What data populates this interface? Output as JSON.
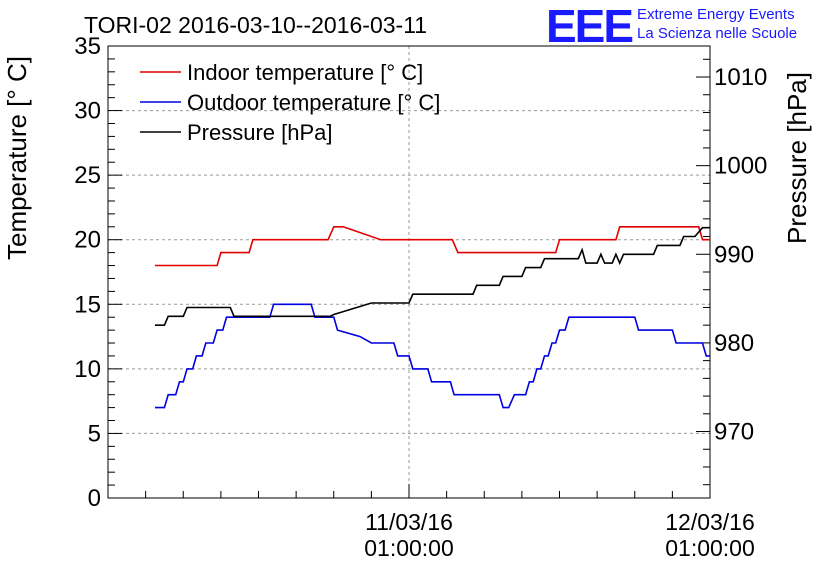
{
  "chart_data": {
    "type": "line",
    "title": "TORI-02 2016-03-10--2016-03-11",
    "logo": {
      "mark": "EEE",
      "line1": "Extreme Energy Events",
      "line2": "La Scienza nelle Scuole",
      "color": "#1a1aff"
    },
    "ylabel": "Temperature [° C]",
    "y2label": "Pressure [hPa]",
    "ylim": [
      0,
      35
    ],
    "y2lim": [
      962.5,
      1013.5
    ],
    "yticks": [
      0,
      5,
      10,
      15,
      20,
      25,
      30,
      35
    ],
    "y2ticks": [
      970,
      980,
      990,
      1000,
      1010
    ],
    "xlim": [
      0,
      32
    ],
    "xticks": [
      {
        "x": 16,
        "date": "11/03/16",
        "time": "01:00:00"
      },
      {
        "x": 32,
        "date": "12/03/16",
        "time": "01:00:00"
      }
    ],
    "grid": true,
    "legend_position": "top-left",
    "series": [
      {
        "name": "Indoor temperature [° C]",
        "axis": "left",
        "color": "#e00000",
        "points": [
          [
            2.5,
            18
          ],
          [
            5.8,
            18
          ],
          [
            6.0,
            19
          ],
          [
            7.5,
            19
          ],
          [
            7.7,
            20
          ],
          [
            11.7,
            20
          ],
          [
            12.0,
            21
          ],
          [
            12.5,
            21
          ],
          [
            14.5,
            20
          ],
          [
            18.3,
            20
          ],
          [
            18.6,
            19
          ],
          [
            23.8,
            19
          ],
          [
            24.0,
            20
          ],
          [
            27.0,
            20
          ],
          [
            27.2,
            21
          ],
          [
            31.4,
            21
          ],
          [
            31.6,
            20
          ],
          [
            32.0,
            20
          ]
        ]
      },
      {
        "name": "Outdoor temperature [° C]",
        "axis": "left",
        "color": "#0000e0",
        "points": [
          [
            2.5,
            7
          ],
          [
            3.0,
            7
          ],
          [
            3.2,
            8
          ],
          [
            3.6,
            8
          ],
          [
            3.8,
            9
          ],
          [
            4.0,
            9
          ],
          [
            4.2,
            10
          ],
          [
            4.5,
            10
          ],
          [
            4.7,
            11
          ],
          [
            5.0,
            11
          ],
          [
            5.2,
            12
          ],
          [
            5.6,
            12
          ],
          [
            5.8,
            13
          ],
          [
            6.1,
            13
          ],
          [
            6.3,
            14
          ],
          [
            8.6,
            14
          ],
          [
            8.8,
            15
          ],
          [
            10.8,
            15
          ],
          [
            11.0,
            14
          ],
          [
            12.0,
            14
          ],
          [
            12.2,
            13
          ],
          [
            13.4,
            12.5
          ],
          [
            14.0,
            12
          ],
          [
            15.2,
            12
          ],
          [
            15.4,
            11
          ],
          [
            16.0,
            11
          ],
          [
            16.2,
            10
          ],
          [
            17.0,
            10
          ],
          [
            17.2,
            9
          ],
          [
            18.2,
            9
          ],
          [
            18.4,
            8
          ],
          [
            20.8,
            8
          ],
          [
            21.0,
            7
          ],
          [
            21.3,
            7
          ],
          [
            21.6,
            8
          ],
          [
            22.2,
            8
          ],
          [
            22.4,
            9
          ],
          [
            22.6,
            9
          ],
          [
            22.8,
            10
          ],
          [
            23.0,
            10
          ],
          [
            23.2,
            11
          ],
          [
            23.4,
            11
          ],
          [
            23.6,
            12
          ],
          [
            23.8,
            12
          ],
          [
            24.0,
            13
          ],
          [
            24.3,
            13
          ],
          [
            24.5,
            14
          ],
          [
            28.0,
            14
          ],
          [
            28.2,
            13
          ],
          [
            30.0,
            13
          ],
          [
            30.2,
            12
          ],
          [
            31.6,
            12
          ],
          [
            31.8,
            11
          ],
          [
            32.0,
            11
          ]
        ]
      },
      {
        "name": "Pressure [hPa]",
        "axis": "right",
        "color": "#000000",
        "points": [
          [
            2.5,
            982
          ],
          [
            3.0,
            982
          ],
          [
            3.2,
            983
          ],
          [
            4.0,
            983
          ],
          [
            4.2,
            984
          ],
          [
            6.5,
            984
          ],
          [
            6.7,
            983
          ],
          [
            11.8,
            983
          ],
          [
            12.0,
            983.2
          ],
          [
            14.0,
            984.5
          ],
          [
            16.0,
            984.5
          ],
          [
            16.2,
            985.5
          ],
          [
            19.4,
            985.5
          ],
          [
            19.6,
            986.5
          ],
          [
            20.8,
            986.5
          ],
          [
            21.0,
            987.5
          ],
          [
            22.0,
            987.5
          ],
          [
            22.2,
            988.5
          ],
          [
            23.0,
            988.5
          ],
          [
            23.2,
            989.5
          ],
          [
            25.0,
            989.5
          ],
          [
            25.2,
            990.5
          ],
          [
            25.4,
            989
          ],
          [
            26.0,
            989
          ],
          [
            26.2,
            990
          ],
          [
            26.4,
            989
          ],
          [
            26.8,
            989
          ],
          [
            27.0,
            990
          ],
          [
            27.2,
            989
          ],
          [
            27.4,
            990
          ],
          [
            29.0,
            990
          ],
          [
            29.2,
            991
          ],
          [
            30.4,
            991
          ],
          [
            30.6,
            992
          ],
          [
            31.2,
            992
          ],
          [
            31.6,
            993
          ],
          [
            32.0,
            993
          ]
        ]
      }
    ]
  }
}
